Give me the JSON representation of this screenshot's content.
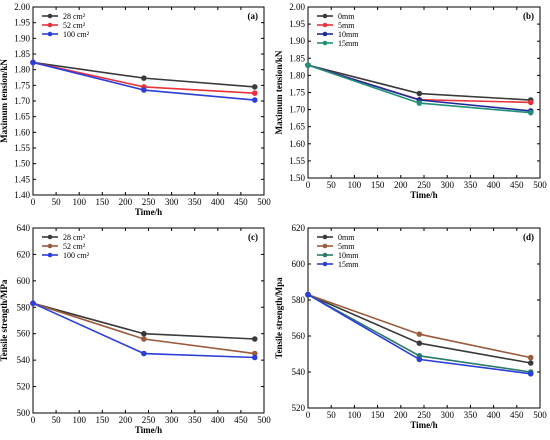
{
  "chart_data": [
    {
      "type": "line",
      "panel": "(a)",
      "x": [
        0,
        240,
        480
      ],
      "xlabel": "Time/h",
      "ylabel": "Maximum tension/kN",
      "xlim": [
        0,
        500
      ],
      "ylim": [
        1.4,
        2.0
      ],
      "xticks": [
        0,
        50,
        100,
        150,
        200,
        250,
        300,
        350,
        400,
        450,
        500
      ],
      "yticks": [
        1.4,
        1.45,
        1.5,
        1.55,
        1.6,
        1.65,
        1.7,
        1.75,
        1.8,
        1.85,
        1.9,
        1.95,
        2.0
      ],
      "ydecimals": 2,
      "legend": "top-left",
      "series": [
        {
          "name": "28 cm²",
          "color": "#3a3a3a",
          "values": [
            1.823,
            1.773,
            1.745
          ]
        },
        {
          "name": "52 cm²",
          "color": "#e8323c",
          "values": [
            1.823,
            1.745,
            1.725
          ]
        },
        {
          "name": "100 cm²",
          "color": "#2a3ed8",
          "values": [
            1.823,
            1.735,
            1.703
          ]
        }
      ]
    },
    {
      "type": "line",
      "panel": "(b)",
      "x": [
        0,
        240,
        480
      ],
      "xlabel": "Time/h",
      "ylabel": "Maximum tension/kN",
      "xlim": [
        0,
        500
      ],
      "ylim": [
        1.5,
        2.0
      ],
      "xticks": [
        0,
        50,
        100,
        150,
        200,
        250,
        300,
        350,
        400,
        450,
        500
      ],
      "yticks": [
        1.5,
        1.55,
        1.6,
        1.65,
        1.7,
        1.75,
        1.8,
        1.85,
        1.9,
        1.95,
        2.0
      ],
      "ydecimals": 2,
      "legend": "top-left",
      "series": [
        {
          "name": "0mm",
          "color": "#3a3a3a",
          "values": [
            1.83,
            1.747,
            1.728
          ]
        },
        {
          "name": "5mm",
          "color": "#e8323c",
          "values": [
            1.83,
            1.729,
            1.721
          ]
        },
        {
          "name": "10mm",
          "color": "#1d2c9a",
          "values": [
            1.83,
            1.728,
            1.696
          ]
        },
        {
          "name": "15mm",
          "color": "#21907a",
          "values": [
            1.83,
            1.719,
            1.691
          ]
        }
      ]
    },
    {
      "type": "line",
      "panel": "(c)",
      "x": [
        0,
        240,
        480
      ],
      "xlabel": "Time/h",
      "ylabel": "Tensile strength/MPa",
      "xlim": [
        0,
        500
      ],
      "ylim": [
        500,
        640
      ],
      "xticks": [
        0,
        50,
        100,
        150,
        200,
        250,
        300,
        350,
        400,
        450,
        500
      ],
      "yticks": [
        500,
        520,
        540,
        560,
        580,
        600,
        620,
        640
      ],
      "ydecimals": 0,
      "legend": "top-left",
      "series": [
        {
          "name": "28 cm²",
          "color": "#3a3a3a",
          "values": [
            583,
            560,
            556
          ]
        },
        {
          "name": "52 cm²",
          "color": "#9b5a3c",
          "values": [
            583,
            556,
            545
          ]
        },
        {
          "name": "100 cm²",
          "color": "#2a3ed8",
          "values": [
            583,
            545,
            542
          ]
        }
      ]
    },
    {
      "type": "line",
      "panel": "(d)",
      "x": [
        0,
        240,
        480
      ],
      "xlabel": "Time/h",
      "ylabel": "Tensile strength/Mpa",
      "xlim": [
        0,
        500
      ],
      "ylim": [
        520,
        620
      ],
      "xticks": [
        0,
        50,
        100,
        150,
        200,
        250,
        300,
        350,
        400,
        450,
        500
      ],
      "yticks": [
        520,
        540,
        560,
        580,
        600,
        620
      ],
      "ydecimals": 0,
      "legend": "top-left",
      "series": [
        {
          "name": "0mm",
          "color": "#3a3a3a",
          "values": [
            583,
            556,
            545
          ]
        },
        {
          "name": "5mm",
          "color": "#9b5a3c",
          "values": [
            583,
            561,
            548
          ]
        },
        {
          "name": "10mm",
          "color": "#2a7a6a",
          "values": [
            583,
            549,
            540
          ]
        },
        {
          "name": "15mm",
          "color": "#2a3ed8",
          "values": [
            583,
            547,
            539
          ]
        }
      ]
    }
  ]
}
